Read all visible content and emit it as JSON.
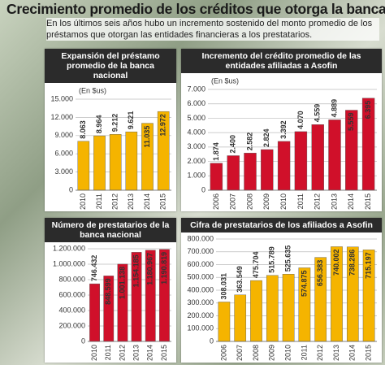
{
  "title": "Crecimiento promedio de los créditos que otorga la banca",
  "subtitle": "En los últimos seis años hubo un incremento sostenido del monto promedio de los préstamos que otorgan las entidades financieras a los prestatarios.",
  "chart_data": [
    {
      "type": "bar",
      "title": "Expansión del préstamo promedio de la banca nacional",
      "unit": "(En $us)",
      "color": "#f5b400",
      "categories": [
        "2010",
        "2011",
        "2012",
        "2013",
        "2014",
        "2015"
      ],
      "values": [
        8063,
        8964,
        9212,
        9621,
        11035,
        12972
      ],
      "value_labels": [
        "8.063",
        "8.964",
        "9.212",
        "9.621",
        "11.035",
        "12.972"
      ],
      "ylim": [
        0,
        15000
      ],
      "yticks": [
        0,
        {
          "value": 3000,
          "label": "3.000"
        },
        {
          "value": 6000,
          "label": "6.000"
        },
        {
          "value": 9000,
          "label": "9.000"
        },
        {
          "value": 12000,
          "label": "12.000"
        },
        {
          "value": 15000,
          "label": "15.000"
        }
      ],
      "grid": true
    },
    {
      "type": "bar",
      "title": "Incremento del crédito promedio de las entidades afiliadas a Asofin",
      "unit": "(En $us)",
      "color": "#d0102a",
      "categories": [
        "2006",
        "2007",
        "2008",
        "2009",
        "2010",
        "2011",
        "2012",
        "2013",
        "2014",
        "2015"
      ],
      "values": [
        1874,
        2400,
        2582,
        2824,
        3392,
        4070,
        4559,
        4889,
        5559,
        6395
      ],
      "value_labels": [
        "1.874",
        "2.400",
        "2.582",
        "2.824",
        "3.392",
        "4.070",
        "4.559",
        "4.889",
        "5.559",
        "6.395"
      ],
      "ylim": [
        0,
        7000
      ],
      "yticks": [
        0,
        {
          "value": 1000,
          "label": "1.000"
        },
        {
          "value": 2000,
          "label": "2.000"
        },
        {
          "value": 3000,
          "label": "3.000"
        },
        {
          "value": 4000,
          "label": "4.000"
        },
        {
          "value": 5000,
          "label": "5.000"
        },
        {
          "value": 6000,
          "label": "6.000"
        },
        {
          "value": 7000,
          "label": "7.000"
        }
      ],
      "grid": true
    },
    {
      "type": "bar",
      "title": "Número de prestatarios de la banca nacional",
      "color": "#d0102a",
      "categories": [
        "2010",
        "2011",
        "2012",
        "2013",
        "2014",
        "2015"
      ],
      "values": [
        746432,
        848599,
        1001138,
        1154185,
        1180967,
        1190819
      ],
      "value_labels": [
        "746.432",
        "848.599",
        "1.001.138",
        "1.154.185",
        "1.180.967",
        "1.190.819"
      ],
      "ylim": [
        0,
        1200000
      ],
      "yticks": [
        0,
        {
          "value": 200000,
          "label": "200.000"
        },
        {
          "value": 400000,
          "label": "400.000"
        },
        {
          "value": 600000,
          "label": "600.000"
        },
        {
          "value": 800000,
          "label": "800.000"
        },
        {
          "value": 1000000,
          "label": "1.000.000"
        },
        {
          "value": 1200000,
          "label": "1.200.000"
        }
      ],
      "grid": true
    },
    {
      "type": "bar",
      "title": "Cifra de prestatarios de los afiliados a Asofin",
      "color": "#f5b400",
      "categories": [
        "2006",
        "2007",
        "2008",
        "2009",
        "2010",
        "2011",
        "2012",
        "2013",
        "2014",
        "2015"
      ],
      "values": [
        308031,
        363549,
        475704,
        515789,
        525635,
        574875,
        656383,
        740002,
        738286,
        715197
      ],
      "value_labels": [
        "308.031",
        "363.549",
        "475.704",
        "515.789",
        "525.635",
        "574.875",
        "656.383",
        "740.002",
        "738.286",
        "715.197"
      ],
      "ylim": [
        0,
        800000
      ],
      "yticks": [
        0,
        {
          "value": 100000,
          "label": "100.000"
        },
        {
          "value": 200000,
          "label": "200.000"
        },
        {
          "value": 300000,
          "label": "300.000"
        },
        {
          "value": 400000,
          "label": "400.000"
        },
        {
          "value": 500000,
          "label": "500.000"
        },
        {
          "value": 600000,
          "label": "600.000"
        },
        {
          "value": 700000,
          "label": "700.000"
        },
        {
          "value": 800000,
          "label": "800.000"
        }
      ],
      "grid": true
    }
  ]
}
